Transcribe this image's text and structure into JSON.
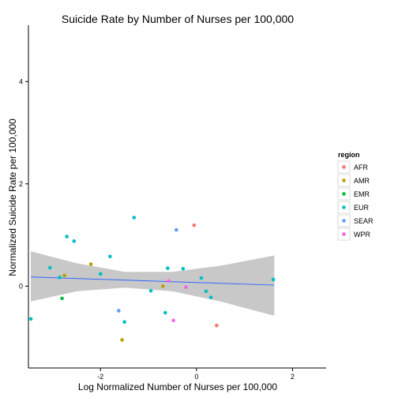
{
  "chart_data": {
    "type": "scatter",
    "title": "Suicide Rate by Number of Nurses per 100,000",
    "xlabel": "Log Normalized Number of Nurses per 100,000",
    "ylabel": "Normalized Suicide Rate per 100,000",
    "xlim": [
      -3.5,
      2.7
    ],
    "ylim": [
      -1.6,
      5.1
    ],
    "xticks": [
      -2,
      0,
      2
    ],
    "yticks": [
      0,
      2,
      4
    ],
    "grid": false,
    "legend": {
      "title": "region",
      "placement": "right",
      "entries": [
        {
          "name": "AFR",
          "color": "#F8766D"
        },
        {
          "name": "AMR",
          "color": "#B79F00"
        },
        {
          "name": "EMR",
          "color": "#00BA38"
        },
        {
          "name": "EUR",
          "color": "#00BFC4"
        },
        {
          "name": "SEAR",
          "color": "#619CFF"
        },
        {
          "name": "WPR",
          "color": "#F564E3"
        }
      ]
    },
    "series": [
      {
        "name": "AFR",
        "color": "#F8766D",
        "points": [
          [
            -0.05,
            1.19
          ],
          [
            0.42,
            -0.77
          ]
        ]
      },
      {
        "name": "AMR",
        "color": "#B79F00",
        "points": [
          [
            -2.2,
            0.43
          ],
          [
            -2.75,
            0.21
          ],
          [
            -0.7,
            0.0
          ],
          [
            -1.55,
            -1.05
          ]
        ]
      },
      {
        "name": "EMR",
        "color": "#00BA38",
        "points": [
          [
            -2.8,
            -0.24
          ]
        ]
      },
      {
        "name": "EUR",
        "color": "#00BFC4",
        "points": [
          [
            -2.7,
            0.97
          ],
          [
            -2.55,
            0.88
          ],
          [
            -3.05,
            0.36
          ],
          [
            -2.85,
            0.17
          ],
          [
            -1.8,
            0.58
          ],
          [
            -1.3,
            1.34
          ],
          [
            -2.0,
            0.24
          ],
          [
            -0.6,
            0.35
          ],
          [
            -0.95,
            -0.09
          ],
          [
            -0.28,
            0.34
          ],
          [
            0.1,
            0.16
          ],
          [
            0.2,
            -0.1
          ],
          [
            0.3,
            -0.22
          ],
          [
            -1.5,
            -0.7
          ],
          [
            -3.45,
            -0.64
          ],
          [
            -0.65,
            -0.52
          ],
          [
            1.6,
            0.13
          ]
        ]
      },
      {
        "name": "SEAR",
        "color": "#619CFF",
        "points": [
          [
            -0.42,
            1.1
          ],
          [
            -1.62,
            -0.48
          ]
        ]
      },
      {
        "name": "WPR",
        "color": "#F564E3",
        "points": [
          [
            -0.58,
            0.1
          ],
          [
            -0.22,
            -0.02
          ],
          [
            -0.48,
            -0.67
          ]
        ]
      }
    ],
    "trend": {
      "color": "#3366FF",
      "band_color": "#C8C8C8",
      "line": [
        [
          -3.45,
          0.18
        ],
        [
          1.62,
          0.02
        ]
      ],
      "band_upper": [
        [
          -3.45,
          0.68
        ],
        [
          -2.5,
          0.45
        ],
        [
          -1.5,
          0.28
        ],
        [
          -0.5,
          0.28
        ],
        [
          0.5,
          0.4
        ],
        [
          1.62,
          0.6
        ]
      ],
      "band_lower": [
        [
          -3.45,
          -0.3
        ],
        [
          -2.5,
          -0.1
        ],
        [
          -1.5,
          -0.03
        ],
        [
          -0.5,
          -0.1
        ],
        [
          0.5,
          -0.3
        ],
        [
          1.62,
          -0.58
        ]
      ]
    }
  }
}
